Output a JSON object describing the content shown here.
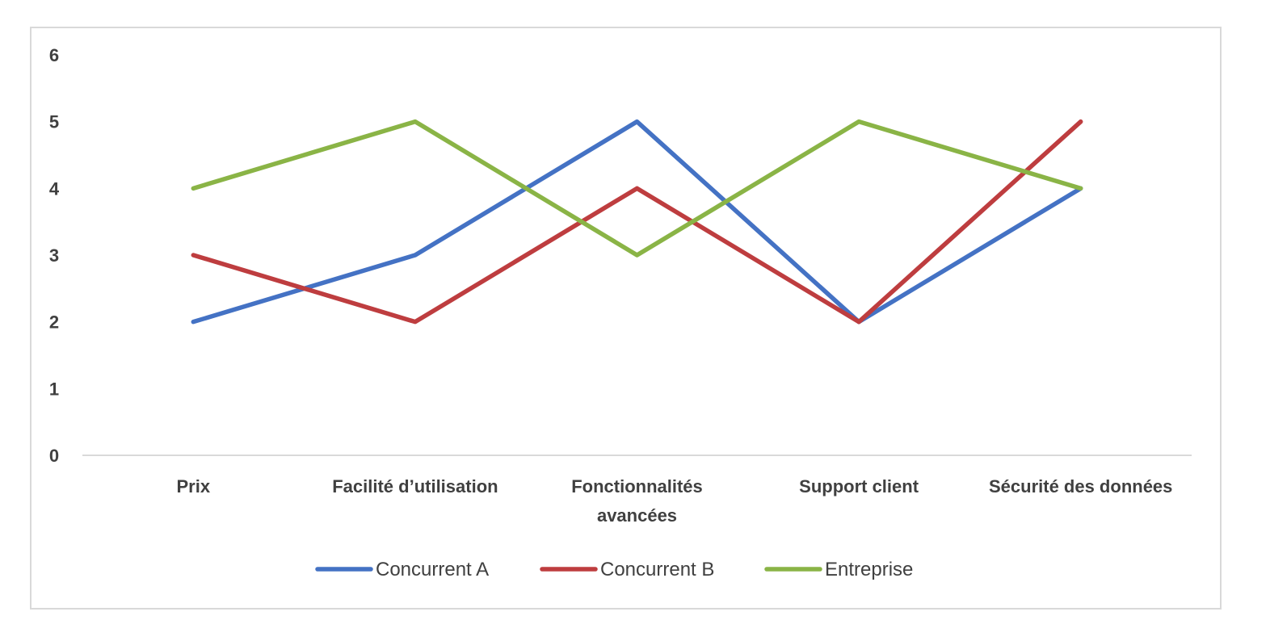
{
  "chart_data": {
    "type": "line",
    "categories": [
      [
        "Prix"
      ],
      [
        "Facilité d’utilisation"
      ],
      [
        "Fonctionnalités",
        "avancées"
      ],
      [
        "Support client"
      ],
      [
        "Sécurité des données"
      ]
    ],
    "series": [
      {
        "name": "Concurrent A",
        "color": "#4472c4",
        "values": [
          2,
          3,
          5,
          2,
          4
        ]
      },
      {
        "name": "Concurrent B",
        "color": "#be3d3f",
        "values": [
          3,
          2,
          4,
          2,
          5
        ]
      },
      {
        "name": "Entreprise",
        "color": "#8ab446",
        "values": [
          4,
          5,
          3,
          5,
          4
        ]
      }
    ],
    "ylim": [
      0,
      6
    ],
    "yticks": [
      "0",
      "1",
      "2",
      "3",
      "4",
      "5",
      "6"
    ],
    "grid": false,
    "legend_position": "bottom",
    "title": "",
    "xlabel": "",
    "ylabel": ""
  }
}
